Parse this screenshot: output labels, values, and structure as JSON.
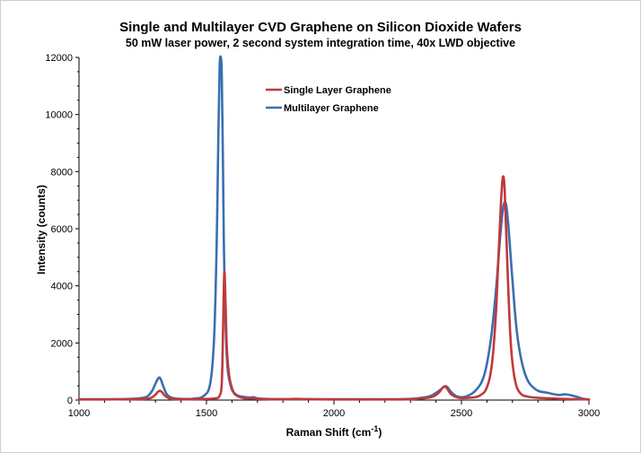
{
  "chart_data": {
    "type": "line",
    "title": "Single and Multilayer CVD Graphene on Silicon Dioxide Wafers",
    "subtitle": "50 mW laser power, 2 second system integration time, 40x LWD objective",
    "xlabel": "Raman Shift (cm",
    "xlabel_sup": "-1",
    "xlabel_tail": ")",
    "ylabel": "Intensity (counts)",
    "xlim": [
      1000,
      3000
    ],
    "ylim": [
      0,
      12000
    ],
    "xticks": [
      1000,
      1500,
      2000,
      2500,
      3000
    ],
    "yticks": [
      0,
      2000,
      4000,
      6000,
      8000,
      10000,
      12000
    ],
    "legend_position": "top-center",
    "series": [
      {
        "name": "Single Layer Graphene",
        "color": "#c0393b",
        "x": [
          1000,
          1100,
          1200,
          1270,
          1295,
          1310,
          1318,
          1326,
          1340,
          1360,
          1400,
          1450,
          1500,
          1530,
          1550,
          1560,
          1565,
          1570,
          1575,
          1580,
          1590,
          1605,
          1620,
          1650,
          1680,
          1700,
          1750,
          1800,
          1850,
          1900,
          2000,
          2100,
          2200,
          2300,
          2380,
          2410,
          2425,
          2435,
          2445,
          2460,
          2490,
          2530,
          2570,
          2600,
          2620,
          2635,
          2645,
          2655,
          2662,
          2668,
          2675,
          2685,
          2695,
          2710,
          2730,
          2760,
          2800,
          2850,
          2900,
          2950,
          3000
        ],
        "values": [
          20,
          20,
          30,
          50,
          150,
          290,
          330,
          270,
          130,
          50,
          30,
          30,
          40,
          60,
          130,
          600,
          2500,
          4500,
          3300,
          1800,
          800,
          300,
          150,
          60,
          60,
          40,
          30,
          30,
          40,
          30,
          20,
          20,
          20,
          30,
          100,
          250,
          420,
          480,
          390,
          200,
          80,
          80,
          150,
          450,
          1300,
          3000,
          5000,
          6900,
          7800,
          7600,
          6000,
          3600,
          1800,
          700,
          250,
          120,
          80,
          60,
          40,
          30,
          20
        ]
      },
      {
        "name": "Multilayer Graphene",
        "color": "#3a6fb0",
        "x": [
          1000,
          1100,
          1200,
          1260,
          1285,
          1300,
          1310,
          1316,
          1322,
          1332,
          1345,
          1365,
          1400,
          1450,
          1490,
          1515,
          1530,
          1540,
          1547,
          1552,
          1556,
          1560,
          1565,
          1570,
          1580,
          1595,
          1615,
          1640,
          1670,
          1685,
          1700,
          1730,
          1800,
          1900,
          2000,
          2100,
          2200,
          2300,
          2370,
          2400,
          2420,
          2435,
          2445,
          2460,
          2485,
          2520,
          2560,
          2590,
          2615,
          2635,
          2650,
          2660,
          2668,
          2676,
          2685,
          2700,
          2720,
          2750,
          2790,
          2840,
          2880,
          2910,
          2950,
          2975,
          3000
        ],
        "values": [
          30,
          30,
          40,
          100,
          300,
          580,
          750,
          790,
          700,
          450,
          200,
          80,
          40,
          50,
          150,
          600,
          2200,
          5500,
          9500,
          11800,
          12000,
          11400,
          8000,
          4500,
          1500,
          500,
          200,
          120,
          90,
          100,
          60,
          40,
          30,
          30,
          30,
          30,
          30,
          40,
          120,
          250,
          380,
          480,
          450,
          280,
          120,
          130,
          380,
          900,
          2100,
          3800,
          5500,
          6500,
          6900,
          6800,
          6000,
          4200,
          2200,
          900,
          380,
          250,
          180,
          200,
          120,
          50,
          20
        ]
      }
    ]
  }
}
